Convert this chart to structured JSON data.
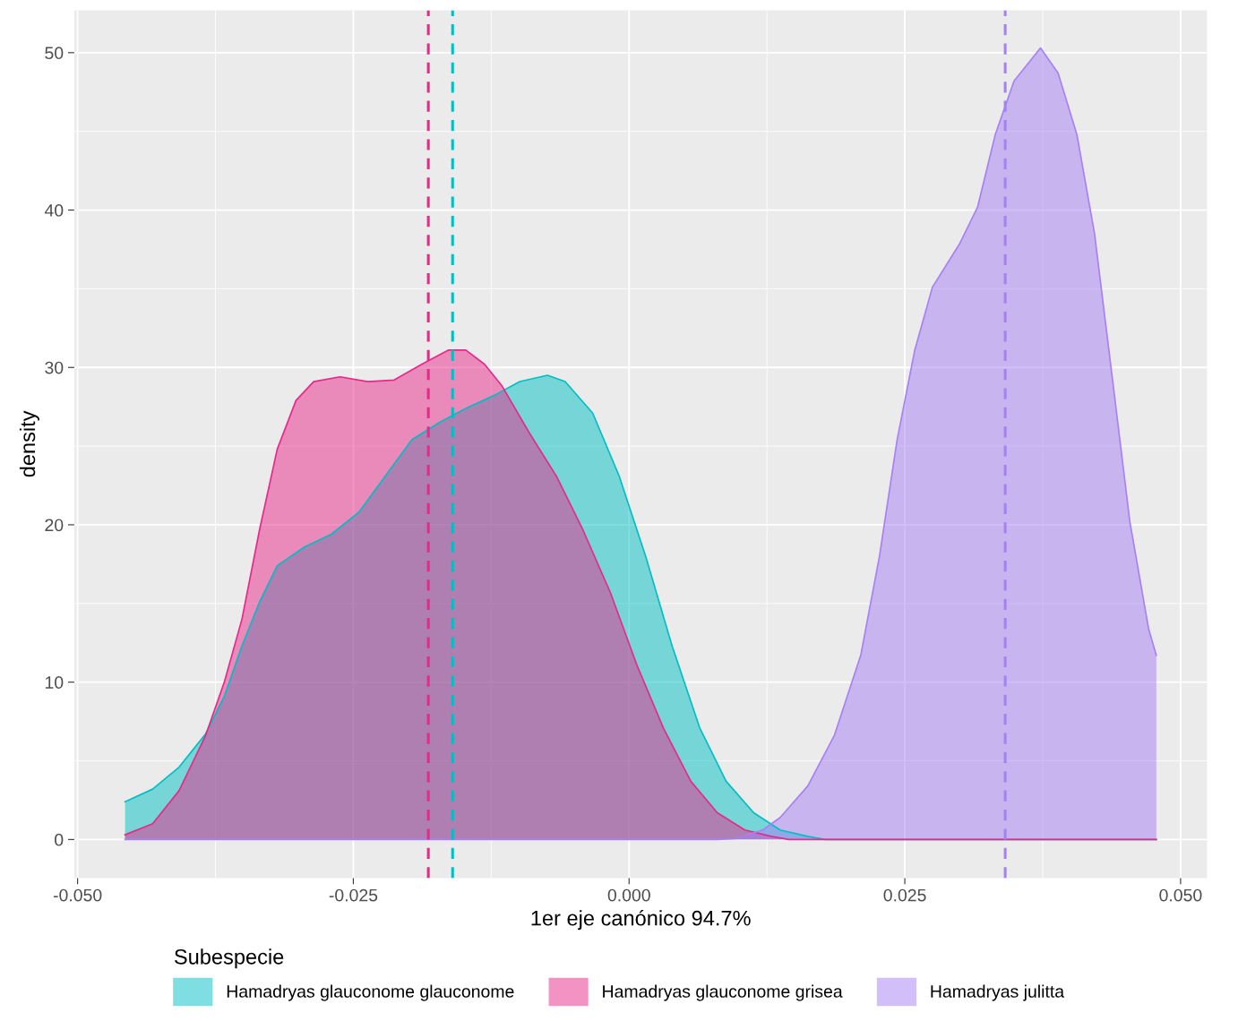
{
  "chart_data": {
    "type": "area",
    "xlabel": "1er eje canónico 94.7%",
    "ylabel": "density",
    "legend_title": "Subespecie",
    "legend": "bottom",
    "grid": true,
    "xlim": [
      -0.0503,
      0.0524
    ],
    "ylim": [
      -2.45,
      52.7
    ],
    "xticks": [
      {
        "value": -0.05,
        "label": "-0.050"
      },
      {
        "value": -0.025,
        "label": "-0.025"
      },
      {
        "value": 0,
        "label": "0.000"
      },
      {
        "value": 0.025,
        "label": "0.025"
      },
      {
        "value": 0.05,
        "label": "0.050"
      }
    ],
    "yticks": [
      0,
      10,
      20,
      30,
      40,
      50
    ],
    "series": [
      {
        "name": "Hamadryas glauconome glauconome",
        "color": "#00bfc4",
        "x": [
          -0.0457,
          -0.0432,
          -0.0408,
          -0.0384,
          -0.0367,
          -0.0351,
          -0.0335,
          -0.0319,
          -0.0294,
          -0.027,
          -0.0245,
          -0.0221,
          -0.0197,
          -0.0172,
          -0.0148,
          -0.0123,
          -0.0099,
          -0.0074,
          -0.0058,
          -0.0033,
          -0.0009,
          0.0015,
          0.0039,
          0.0064,
          0.0088,
          0.0113,
          0.0137,
          0.0162,
          0.0178,
          0.0478
        ],
        "values": [
          2.4,
          3.2,
          4.6,
          6.7,
          9.1,
          12.3,
          15.1,
          17.4,
          18.6,
          19.4,
          20.8,
          23.1,
          25.4,
          26.5,
          27.4,
          28.2,
          29.1,
          29.5,
          29.1,
          27.1,
          23.1,
          18,
          12.3,
          7.1,
          3.7,
          1.7,
          0.6,
          0.2,
          0,
          0
        ]
      },
      {
        "name": "Hamadryas glauconome grisea",
        "color": "#e7298a",
        "x": [
          -0.0457,
          -0.0432,
          -0.0408,
          -0.0384,
          -0.0367,
          -0.0351,
          -0.0335,
          -0.0319,
          -0.0302,
          -0.0286,
          -0.0262,
          -0.0237,
          -0.0213,
          -0.0188,
          -0.0164,
          -0.0148,
          -0.0131,
          -0.0115,
          -0.0091,
          -0.0066,
          -0.0042,
          -0.0017,
          0.0007,
          0.0031,
          0.0056,
          0.008,
          0.0105,
          0.0129,
          0.0145,
          0.0478
        ],
        "values": [
          0.3,
          1,
          3.1,
          6.6,
          10,
          14,
          19.7,
          24.8,
          27.9,
          29.1,
          29.4,
          29.1,
          29.2,
          30.2,
          31.1,
          31.1,
          30.2,
          28.8,
          25.9,
          23.1,
          19.7,
          15.7,
          11.1,
          7.1,
          3.7,
          1.7,
          0.6,
          0.2,
          0,
          0
        ]
      },
      {
        "name": "Hamadryas julitta",
        "color": "#a680f5",
        "x": [
          -0.0457,
          0.008,
          0.0096,
          0.0121,
          0.0137,
          0.0162,
          0.0186,
          0.021,
          0.0227,
          0.0243,
          0.0259,
          0.0275,
          0.03,
          0.0316,
          0.0332,
          0.0349,
          0.0373,
          0.0389,
          0.0406,
          0.0422,
          0.0438,
          0.0454,
          0.0471,
          0.0478
        ],
        "values": [
          0,
          0,
          0.05,
          0.6,
          1.4,
          3.4,
          6.6,
          11.7,
          18,
          25.4,
          31.1,
          35.1,
          37.9,
          40.2,
          44.8,
          48.2,
          50.3,
          48.7,
          44.8,
          38.5,
          29.4,
          20.2,
          13.4,
          11.7
        ]
      }
    ],
    "ref_lines": [
      {
        "axis": "x",
        "value": -0.0182,
        "color": "#e7298a",
        "line_style": "dashed"
      },
      {
        "axis": "x",
        "value": -0.016,
        "color": "#00bfc4",
        "line_style": "dashed"
      },
      {
        "axis": "x",
        "value": 0.0341,
        "color": "#a680f5",
        "line_style": "dashed"
      }
    ]
  }
}
